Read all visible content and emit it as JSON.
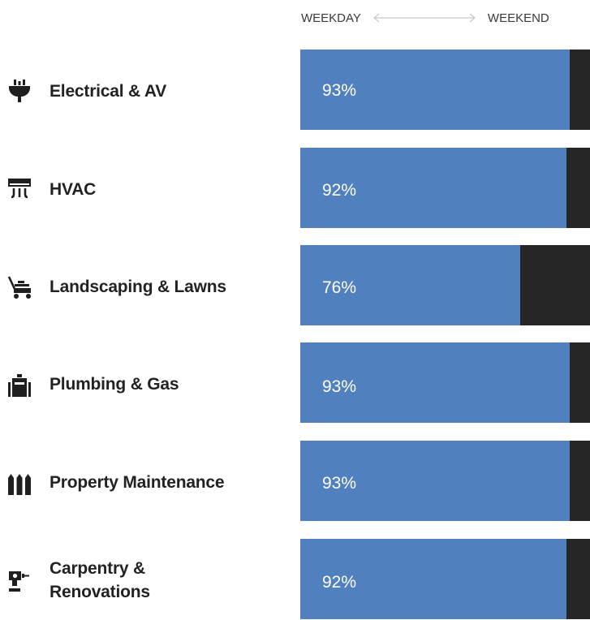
{
  "header": {
    "left_label": "WEEKDAY",
    "right_label": "WEEKEND"
  },
  "chart_data": {
    "type": "bar",
    "orientation": "horizontal-stacked-100",
    "categories": [
      "Electrical & AV",
      "HVAC",
      "Landscaping & Lawns",
      "Plumbing & Gas",
      "Property Maintenance",
      "Carpentry & Renovations"
    ],
    "series": [
      {
        "name": "WEEKDAY",
        "values": [
          93,
          92,
          76,
          93,
          93,
          92
        ],
        "color": "#5080bd"
      },
      {
        "name": "WEEKEND",
        "values": [
          7,
          8,
          24,
          7,
          7,
          8
        ],
        "color": "#262626"
      }
    ],
    "xlim": [
      0,
      100
    ],
    "value_suffix": "%"
  },
  "rows": [
    {
      "label": "Electrical & AV",
      "value": 93,
      "pct": "93%",
      "icon": "plug-icon"
    },
    {
      "label": "HVAC",
      "value": 92,
      "pct": "92%",
      "icon": "air-conditioner-icon"
    },
    {
      "label": "Landscaping & Lawns",
      "value": 76,
      "pct": "76%",
      "icon": "lawn-mower-icon"
    },
    {
      "label": "Plumbing & Gas",
      "value": 93,
      "pct": "93%",
      "icon": "water-heater-icon"
    },
    {
      "label": "Property Maintenance",
      "value": 93,
      "pct": "93%",
      "icon": "fence-icon"
    },
    {
      "label": "Carpentry & Renovations",
      "label_lines": [
        "Carpentry &",
        "Renovations"
      ],
      "value": 92,
      "pct": "92%",
      "icon": "drill-icon"
    }
  ]
}
